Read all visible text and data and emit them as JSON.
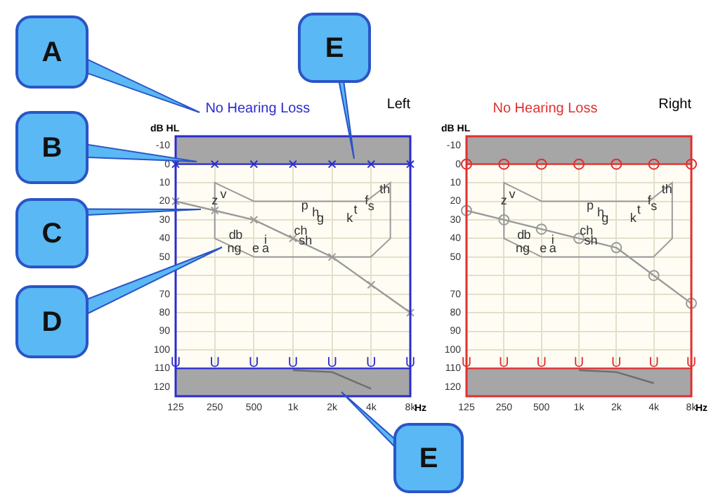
{
  "chart_data": [
    {
      "type": "line",
      "title": "No Hearing Loss",
      "subtitle": "Left",
      "xlabel": "Hz",
      "ylabel": "dB HL",
      "categories": [
        "125",
        "250",
        "500",
        "1k",
        "2k",
        "4k",
        "8k"
      ],
      "ylim": [
        125,
        -15
      ],
      "yticks": [
        -10,
        0,
        10,
        20,
        30,
        40,
        50,
        {
          "value": 60,
          "label": null
        },
        70,
        80,
        90,
        100,
        110,
        120
      ],
      "grid": true,
      "legend": false,
      "bands": [
        {
          "axis": "y",
          "from": -15,
          "to": 0,
          "color": "#a6a6a6"
        },
        {
          "axis": "y",
          "from": 110,
          "to": 125,
          "color": "#a6a6a6"
        }
      ],
      "series": [
        {
          "color": "#2b2bd0",
          "values": [
            0,
            0,
            0,
            0,
            0,
            0,
            0
          ],
          "marker": "cross"
        },
        {
          "color": "#2b2bd0",
          "values": [
            110,
            110,
            110,
            110,
            110,
            110,
            110
          ],
          "marker": "none",
          "value_labels": [
            "U",
            "U",
            "U",
            "U",
            "U",
            "U",
            "U"
          ]
        },
        {
          "color": "#9a9a9a",
          "values": [
            20,
            25,
            30,
            40,
            50,
            65,
            80
          ],
          "marker": "cross"
        },
        {
          "color": "#6e6e6e",
          "values": [
            null,
            null,
            null,
            111,
            112,
            121,
            null
          ],
          "marker": "none"
        }
      ],
      "annotations": [
        "A",
        "B",
        "C",
        "D",
        "E",
        "E",
        "z",
        "v",
        "p",
        "h",
        "g",
        "k",
        "t",
        "f",
        "s",
        "th",
        "d",
        "b",
        "ng",
        "e",
        "i",
        "a",
        "ch",
        "sh"
      ]
    },
    {
      "type": "line",
      "title": "No Hearing Loss",
      "subtitle": "Right",
      "xlabel": "Hz",
      "ylabel": "dB HL",
      "categories": [
        "125",
        "250",
        "500",
        "1k",
        "2k",
        "4k",
        "8k"
      ],
      "ylim": [
        125,
        -15
      ],
      "yticks": [
        -10,
        0,
        10,
        20,
        30,
        40,
        50,
        {
          "value": 60,
          "label": null
        },
        70,
        80,
        90,
        100,
        110,
        120
      ],
      "grid": true,
      "legend": false,
      "bands": [
        {
          "axis": "y",
          "from": -15,
          "to": 0,
          "color": "#a6a6a6"
        },
        {
          "axis": "y",
          "from": 110,
          "to": 125,
          "color": "#a6a6a6"
        }
      ],
      "series": [
        {
          "color": "#e03030",
          "values": [
            0,
            0,
            0,
            0,
            0,
            0,
            0
          ],
          "marker": "circle"
        },
        {
          "color": "#e03030",
          "values": [
            110,
            110,
            110,
            110,
            110,
            110,
            110
          ],
          "marker": "none",
          "value_labels": [
            "U",
            "U",
            "U",
            "U",
            "U",
            "U",
            "U"
          ]
        },
        {
          "color": "#9a9a9a",
          "values": [
            25,
            30,
            35,
            40,
            45,
            60,
            75
          ],
          "marker": "circle"
        },
        {
          "color": "#6e6e6e",
          "values": [
            null,
            null,
            null,
            111,
            112,
            118,
            null
          ],
          "marker": "none"
        }
      ],
      "annotations": [
        "z",
        "v",
        "p",
        "h",
        "g",
        "k",
        "t",
        "f",
        "s",
        "th",
        "d",
        "b",
        "ng",
        "e",
        "i",
        "a",
        "ch",
        "sh"
      ]
    }
  ]
}
